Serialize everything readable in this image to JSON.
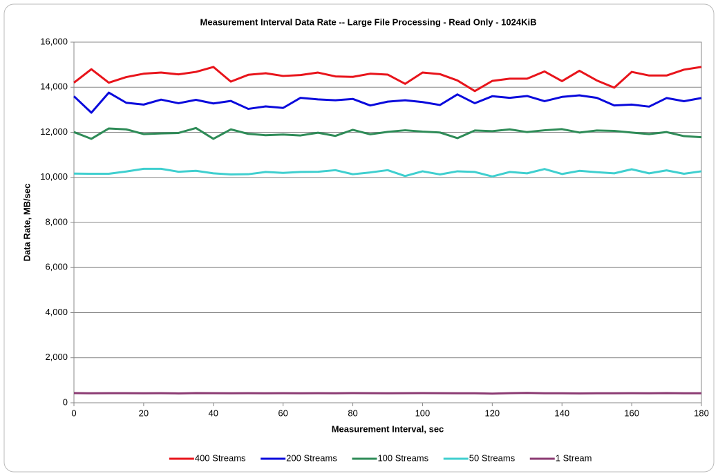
{
  "chart_data": {
    "type": "line",
    "title": "Measurement Interval Data Rate -- Large File Processing - Read Only - 1024KiB",
    "x_label": "Measurement Interval, sec",
    "y_label": "Data Rate, MB/sec",
    "x": [
      0,
      5,
      10,
      15,
      20,
      25,
      30,
      35,
      40,
      45,
      50,
      55,
      60,
      65,
      70,
      75,
      80,
      85,
      90,
      95,
      100,
      105,
      110,
      115,
      120,
      125,
      130,
      135,
      140,
      145,
      150,
      155,
      160,
      165,
      170,
      175,
      180
    ],
    "xlim": [
      0,
      180
    ],
    "xticks": [
      0,
      20,
      40,
      60,
      80,
      100,
      120,
      140,
      160,
      180
    ],
    "ylim": [
      0,
      16000
    ],
    "yticks": [
      0,
      {
        "value": 2000,
        "label": "2,000"
      },
      {
        "value": 4000,
        "label": "4,000"
      },
      {
        "value": 6000,
        "label": "6,000"
      },
      {
        "value": 8000,
        "label": "8,000"
      },
      {
        "value": 10000,
        "label": "10,000"
      },
      {
        "value": 12000,
        "label": "12,000"
      },
      {
        "value": 14000,
        "label": "14,000"
      },
      {
        "value": 16000,
        "label": "16,000"
      }
    ],
    "grid": true,
    "legend": "bottom",
    "series": [
      {
        "name": "400 Streams",
        "color": "#e8141b",
        "values": [
          14200,
          14800,
          14200,
          14450,
          14600,
          14650,
          14570,
          14680,
          14900,
          14250,
          14550,
          14620,
          14500,
          14540,
          14650,
          14480,
          14460,
          14600,
          14560,
          14150,
          14650,
          14580,
          14300,
          13830,
          14280,
          14380,
          14380,
          14700,
          14270,
          14730,
          14300,
          13980,
          14680,
          14520,
          14520,
          14780,
          14900
        ]
      },
      {
        "name": "200 Streams",
        "color": "#0a0adc",
        "values": [
          13600,
          12870,
          13760,
          13310,
          13230,
          13450,
          13290,
          13440,
          13280,
          13390,
          13040,
          13150,
          13080,
          13530,
          13460,
          13420,
          13480,
          13190,
          13360,
          13420,
          13340,
          13210,
          13680,
          13290,
          13600,
          13530,
          13610,
          13380,
          13570,
          13640,
          13530,
          13190,
          13230,
          13140,
          13520,
          13380,
          13520
        ]
      },
      {
        "name": "100 Streams",
        "color": "#2e8b57",
        "values": [
          12010,
          11710,
          12170,
          12130,
          11920,
          11950,
          11970,
          12190,
          11710,
          12130,
          11930,
          11870,
          11900,
          11860,
          11980,
          11840,
          12110,
          11910,
          12020,
          12090,
          12030,
          11990,
          11740,
          12080,
          12050,
          12130,
          12010,
          12090,
          12140,
          11990,
          12080,
          12060,
          11990,
          11920,
          12010,
          11830,
          11780
        ]
      },
      {
        "name": "50 Streams",
        "color": "#3fcfcf",
        "values": [
          10170,
          10160,
          10160,
          10260,
          10380,
          10380,
          10250,
          10290,
          10180,
          10130,
          10140,
          10240,
          10200,
          10240,
          10250,
          10320,
          10140,
          10220,
          10320,
          10060,
          10270,
          10130,
          10270,
          10240,
          10040,
          10240,
          10180,
          10370,
          10150,
          10290,
          10230,
          10180,
          10360,
          10180,
          10310,
          10160,
          10270
        ]
      },
      {
        "name": "1 Stream",
        "color": "#8b3a72",
        "values": [
          430,
          420,
          425,
          425,
          420,
          425,
          415,
          430,
          425,
          420,
          425,
          420,
          425,
          420,
          425,
          420,
          430,
          425,
          420,
          425,
          430,
          425,
          420,
          420,
          405,
          425,
          435,
          420,
          420,
          415,
          420,
          420,
          425,
          420,
          430,
          420,
          420
        ]
      }
    ]
  }
}
